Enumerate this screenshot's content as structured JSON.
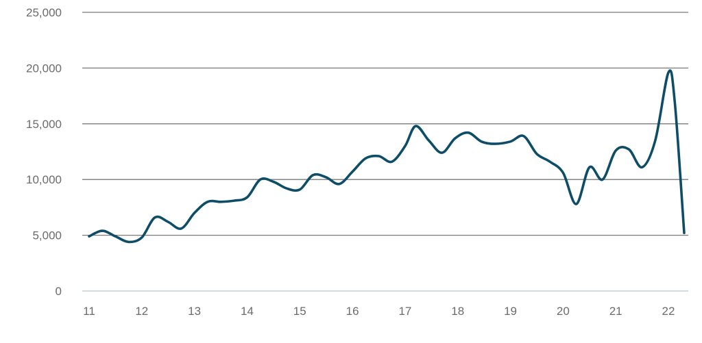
{
  "chart_data": {
    "type": "line",
    "title": "",
    "xlabel": "",
    "ylabel": "",
    "ylim": [
      0,
      25000
    ],
    "yticks": [
      0,
      5000,
      10000,
      15000,
      20000,
      25000
    ],
    "ytick_labels": [
      "0",
      "5,000",
      "10,000",
      "15,000",
      "20,000",
      "25,000"
    ],
    "xlim": [
      11,
      22.35
    ],
    "xticks": [
      11,
      12,
      13,
      14,
      15,
      16,
      17,
      18,
      19,
      20,
      21,
      22
    ],
    "xtick_labels": [
      "11",
      "12",
      "13",
      "14",
      "15",
      "16",
      "17",
      "18",
      "19",
      "20",
      "21",
      "22"
    ],
    "grid": true,
    "legend": "none",
    "colors": {
      "line": "#0e4d68",
      "grid": "#7a7a7a",
      "baseline": "#b9c8d4",
      "text": "#6b6b6b"
    },
    "series": [
      {
        "x": [
          11.0,
          11.25,
          11.5,
          11.75,
          12.0,
          12.25,
          12.5,
          12.75,
          13.0,
          13.25,
          13.5,
          13.75,
          14.0,
          14.25,
          14.5,
          14.75,
          15.0,
          15.25,
          15.5,
          15.75,
          16.0,
          16.25,
          16.5,
          16.75,
          17.0,
          17.2,
          17.45,
          17.7,
          17.95,
          18.2,
          18.45,
          18.7,
          19.0,
          19.25,
          19.5,
          19.75,
          20.0,
          20.25,
          20.5,
          20.75,
          21.0,
          21.25,
          21.5,
          21.75,
          22.0,
          22.12,
          22.3
        ],
        "y": [
          4900,
          5400,
          4900,
          4400,
          4800,
          6600,
          6200,
          5600,
          7000,
          8000,
          8000,
          8100,
          8400,
          10000,
          9800,
          9200,
          9100,
          10400,
          10200,
          9600,
          10700,
          11900,
          12100,
          11600,
          13000,
          14800,
          13500,
          12400,
          13700,
          14200,
          13400,
          13200,
          13400,
          13900,
          12300,
          11600,
          10600,
          7800,
          11100,
          10000,
          12600,
          12700,
          11100,
          13500,
          19600,
          17000,
          5200
        ]
      }
    ]
  }
}
